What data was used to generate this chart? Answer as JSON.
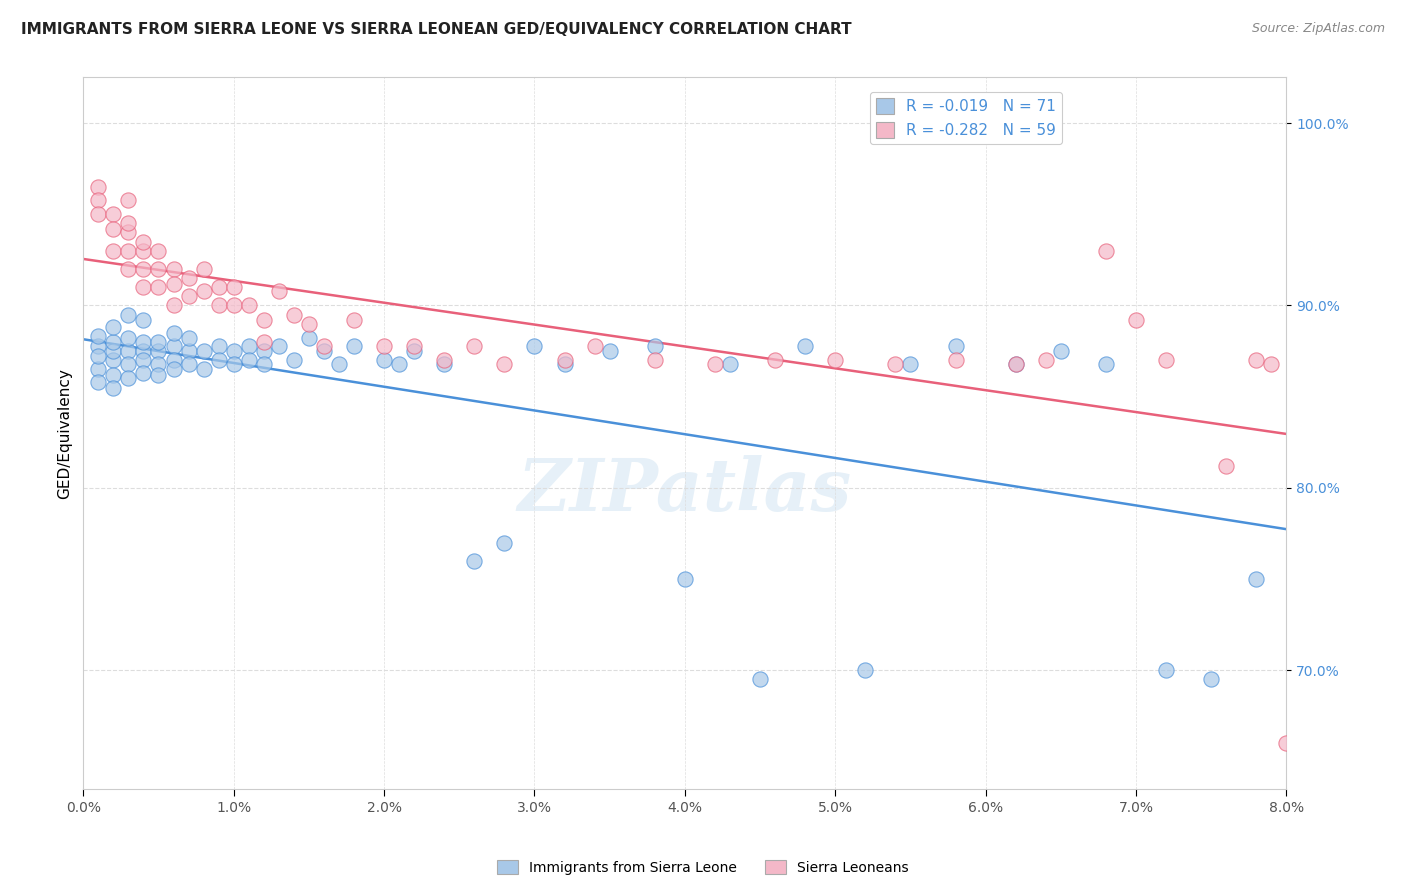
{
  "title": "IMMIGRANTS FROM SIERRA LEONE VS SIERRA LEONEAN GED/EQUIVALENCY CORRELATION CHART",
  "source": "Source: ZipAtlas.com",
  "ylabel": "GED/Equivalency",
  "legend_blue_label": "Immigrants from Sierra Leone",
  "legend_pink_label": "Sierra Leoneans",
  "R_blue": -0.019,
  "N_blue": 71,
  "R_pink": -0.282,
  "N_pink": 59,
  "blue_color": "#a8c8e8",
  "pink_color": "#f4b8c8",
  "blue_line_color": "#4a90d9",
  "pink_line_color": "#e8607a",
  "watermark": "ZIPatlas",
  "xmin": 0.0,
  "xmax": 0.08,
  "ymin": 0.635,
  "ymax": 1.025,
  "blue_points_x": [
    0.001,
    0.001,
    0.001,
    0.001,
    0.001,
    0.002,
    0.002,
    0.002,
    0.002,
    0.002,
    0.002,
    0.003,
    0.003,
    0.003,
    0.003,
    0.003,
    0.004,
    0.004,
    0.004,
    0.004,
    0.004,
    0.005,
    0.005,
    0.005,
    0.005,
    0.006,
    0.006,
    0.006,
    0.006,
    0.007,
    0.007,
    0.007,
    0.008,
    0.008,
    0.009,
    0.009,
    0.01,
    0.01,
    0.011,
    0.011,
    0.012,
    0.012,
    0.013,
    0.014,
    0.015,
    0.016,
    0.017,
    0.018,
    0.02,
    0.021,
    0.022,
    0.024,
    0.026,
    0.028,
    0.03,
    0.032,
    0.035,
    0.038,
    0.04,
    0.043,
    0.045,
    0.048,
    0.052,
    0.055,
    0.058,
    0.062,
    0.065,
    0.068,
    0.072,
    0.075,
    0.078
  ],
  "blue_points_y": [
    0.878,
    0.865,
    0.858,
    0.872,
    0.883,
    0.87,
    0.875,
    0.862,
    0.88,
    0.855,
    0.888,
    0.875,
    0.868,
    0.86,
    0.882,
    0.895,
    0.875,
    0.87,
    0.863,
    0.88,
    0.892,
    0.875,
    0.868,
    0.88,
    0.862,
    0.878,
    0.87,
    0.865,
    0.885,
    0.875,
    0.868,
    0.882,
    0.875,
    0.865,
    0.878,
    0.87,
    0.875,
    0.868,
    0.878,
    0.87,
    0.875,
    0.868,
    0.878,
    0.87,
    0.882,
    0.875,
    0.868,
    0.878,
    0.87,
    0.868,
    0.875,
    0.868,
    0.76,
    0.77,
    0.878,
    0.868,
    0.875,
    0.878,
    0.75,
    0.868,
    0.695,
    0.878,
    0.7,
    0.868,
    0.878,
    0.868,
    0.875,
    0.868,
    0.7,
    0.695,
    0.75
  ],
  "pink_points_x": [
    0.001,
    0.001,
    0.001,
    0.002,
    0.002,
    0.002,
    0.003,
    0.003,
    0.003,
    0.003,
    0.003,
    0.004,
    0.004,
    0.004,
    0.004,
    0.005,
    0.005,
    0.005,
    0.006,
    0.006,
    0.006,
    0.007,
    0.007,
    0.008,
    0.008,
    0.009,
    0.009,
    0.01,
    0.01,
    0.011,
    0.012,
    0.012,
    0.013,
    0.014,
    0.015,
    0.016,
    0.018,
    0.02,
    0.022,
    0.024,
    0.026,
    0.028,
    0.032,
    0.034,
    0.038,
    0.042,
    0.046,
    0.05,
    0.054,
    0.058,
    0.062,
    0.064,
    0.068,
    0.07,
    0.072,
    0.076,
    0.078,
    0.079,
    0.08
  ],
  "pink_points_y": [
    0.965,
    0.958,
    0.95,
    0.95,
    0.942,
    0.93,
    0.94,
    0.93,
    0.92,
    0.958,
    0.945,
    0.93,
    0.92,
    0.935,
    0.91,
    0.93,
    0.92,
    0.91,
    0.92,
    0.912,
    0.9,
    0.915,
    0.905,
    0.92,
    0.908,
    0.91,
    0.9,
    0.91,
    0.9,
    0.9,
    0.892,
    0.88,
    0.908,
    0.895,
    0.89,
    0.878,
    0.892,
    0.878,
    0.878,
    0.87,
    0.878,
    0.868,
    0.87,
    0.878,
    0.87,
    0.868,
    0.87,
    0.87,
    0.868,
    0.87,
    0.868,
    0.87,
    0.93,
    0.892,
    0.87,
    0.812,
    0.87,
    0.868,
    0.66
  ]
}
